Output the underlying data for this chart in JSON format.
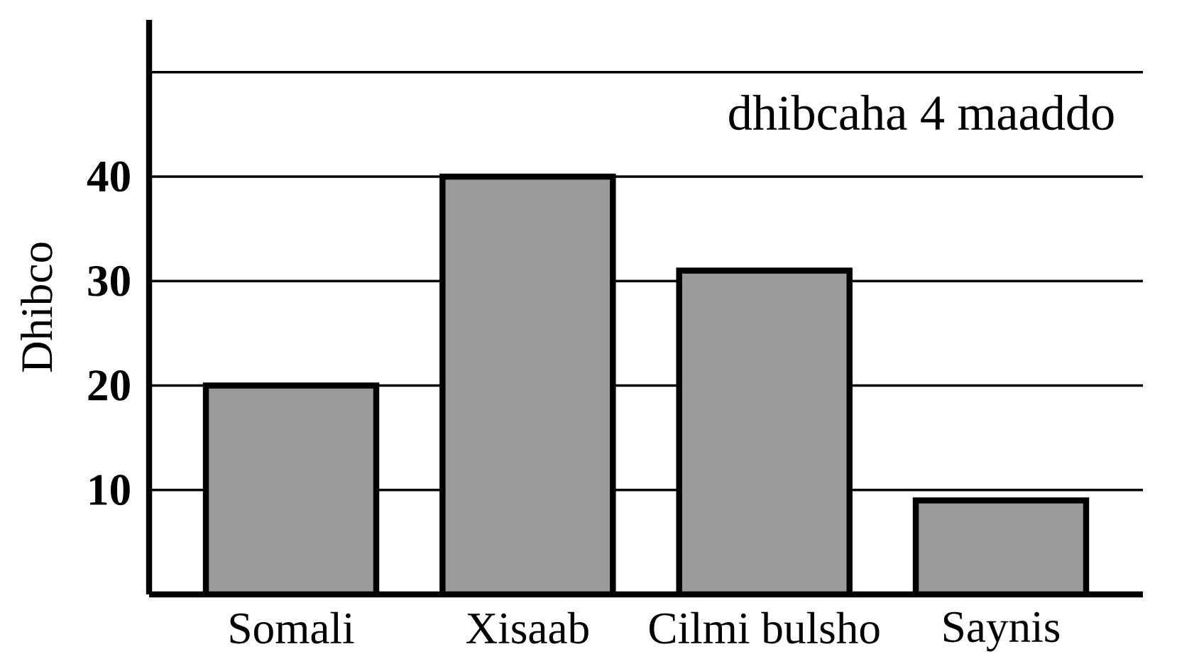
{
  "chart_data": {
    "type": "bar",
    "ylabel": "Dhibco",
    "annotations": [
      "dhibcaha 4 maaddo"
    ],
    "categories": [
      "Somali",
      "Xisaab",
      "Cilmi bulsho",
      "Saynis"
    ],
    "values": [
      20,
      40,
      31,
      9
    ],
    "color": "#9a9a9a",
    "ylim": [
      0,
      55
    ],
    "yticks": [
      10,
      20,
      30,
      40,
      {
        "value": 50,
        "label": null
      }
    ],
    "grid": "y"
  }
}
